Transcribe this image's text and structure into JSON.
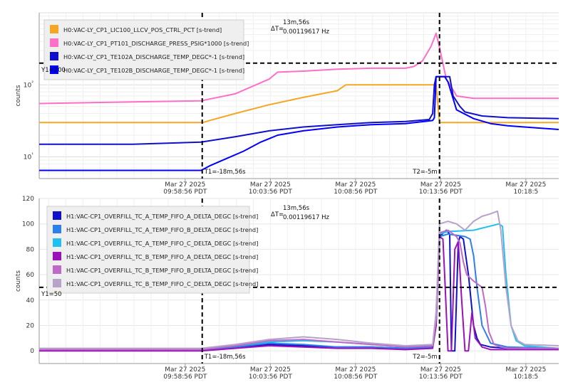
{
  "chart_data": [
    {
      "type": "line",
      "ylabel": "counts",
      "y_scale": "log",
      "y_ticks": [
        {
          "v": 10,
          "label": "10¹"
        },
        {
          "v": 100,
          "label": "10²"
        }
      ],
      "ylim": [
        5,
        1000
      ],
      "xlim": [
        -28.5,
        2
      ],
      "x_ticks": [
        {
          "v": -19.93,
          "date": "Mar 27 2025",
          "time": "09:58:56 PDT"
        },
        {
          "v": -14.93,
          "date": "Mar 27 2025",
          "time": "10:03:56 PDT"
        },
        {
          "v": -9.93,
          "date": "Mar 27 2025",
          "time": "10:08:56 PDT"
        },
        {
          "v": -4.93,
          "date": "Mar 27 2025",
          "time": "10:13:56 PDT"
        },
        {
          "v": 0.07,
          "date": "Mar 27 2025",
          "time": "10:18:5"
        }
      ],
      "grid": true,
      "legend": "top-left",
      "cursors": {
        "t1_label": "T1=-18m,56s",
        "t2_label": "T2=-5m",
        "t1": -18.93,
        "t2": -5.0,
        "y1_label": "Y1=200",
        "y1": 200,
        "delta_label": "ΔT=",
        "delta_time": "13m,56s",
        "delta_freq": "0.00119617 Hz"
      },
      "series": [
        {
          "name": "H0:VAC-LY_CP1_LIC100_LLCV_POS_CTRL_PCT [s-trend]",
          "color": "#f5a623",
          "x": [
            -28.5,
            -18.9,
            -18.5,
            -17,
            -15,
            -13,
            -11,
            -10.5,
            -5.3,
            -5.2,
            -5.0,
            2
          ],
          "y": [
            30,
            30,
            32,
            40,
            53,
            67,
            83,
            100,
            100,
            100,
            30,
            30
          ]
        },
        {
          "name": "H0:VAC-LY_CP1_PT101_DISCHARGE_PRESS_PSIG*1000 [s-trend]",
          "color": "#ff6ec7",
          "x": [
            -28.5,
            -23,
            -19,
            -17,
            -15,
            -14.5,
            -13,
            -11,
            -9,
            -7,
            -6.5,
            -6,
            -5.5,
            -5.2,
            -5.0,
            -4.6,
            -4.2,
            -4,
            -3,
            -1,
            2
          ],
          "y": [
            55,
            58,
            60,
            75,
            120,
            150,
            155,
            165,
            170,
            170,
            180,
            215,
            340,
            520,
            330,
            120,
            85,
            70,
            65,
            65,
            65
          ]
        },
        {
          "name": "H0:VAC-LY_CP1_TE102A_DISCHARGE_TEMP_DEGC*-1 [s-trend]",
          "color": "#1010cc",
          "x": [
            -28.5,
            -23,
            -19,
            -17,
            -15,
            -13,
            -11,
            -9,
            -7,
            -5.6,
            -5.4,
            -5.3,
            -5.2,
            -4.4,
            -4.2,
            -3.8,
            -3.5,
            -2.5,
            -1,
            2
          ],
          "y": [
            15,
            15,
            16,
            19,
            23,
            26,
            28,
            30,
            31,
            33,
            40,
            100,
            130,
            130,
            70,
            50,
            42,
            37,
            35,
            34
          ]
        },
        {
          "name": "H0:VAC-LY_CP1_TE102B_DISCHARGE_TEMP_DEGC*-1 [s-trend]",
          "color": "#0000ff",
          "x": [
            -28.5,
            -19,
            -18.5,
            -17.5,
            -16.5,
            -15.5,
            -14.5,
            -13,
            -11,
            -9,
            -7,
            -5.4,
            -5.3,
            -5.2,
            -4.7,
            -4.5,
            -4,
            -3,
            -2,
            -1,
            2
          ],
          "y": [
            6.5,
            6.5,
            7.5,
            9.5,
            12,
            16,
            20,
            23,
            26,
            28,
            29,
            32,
            35,
            130,
            130,
            110,
            45,
            34,
            29,
            27,
            24
          ]
        }
      ]
    },
    {
      "type": "line",
      "ylabel": "counts",
      "ylim": [
        -10,
        120
      ],
      "y_ticks": [
        0,
        20,
        40,
        60,
        80,
        100,
        120
      ],
      "xlim": [
        -28.5,
        2
      ],
      "x_ticks": [
        {
          "v": -19.93,
          "date": "Mar 27 2025",
          "time": "09:58:56 PDT"
        },
        {
          "v": -14.93,
          "date": "Mar 27 2025",
          "time": "10:03:56 PDT"
        },
        {
          "v": -9.93,
          "date": "Mar 27 2025",
          "time": "10:08:56 PDT"
        },
        {
          "v": -4.93,
          "date": "Mar 27 2025",
          "time": "10:13:56 PDT"
        },
        {
          "v": 0.07,
          "date": "Mar 27 2025",
          "time": "10:18:5"
        }
      ],
      "grid": true,
      "legend": "top-left",
      "cursors": {
        "t1_label": "T1=-18m,56s",
        "t2_label": "T2=-5m",
        "t1": -18.93,
        "t2": -5.0,
        "y1_label": "Y1=50",
        "y1": 50,
        "delta_label": "ΔT=",
        "delta_time": "13m,56s",
        "delta_freq": "0.00119617 Hz"
      },
      "series": [
        {
          "name": "H1:VAC-CP1_OVERFILL_TC_A_TEMP_FIFO_A_DELTA_DEGC [s-trend]",
          "color": "#1010cc",
          "x": [
            -28.5,
            -19,
            -17,
            -15,
            -13,
            -11,
            -9,
            -7,
            -5.4,
            -5.2,
            -5.0,
            -4.6,
            -4.4,
            -4.3,
            -4.1,
            -3.9,
            -3.8,
            -3.6,
            -3.3,
            -3.0,
            -2.8,
            -2.6,
            -2,
            -1,
            2
          ],
          "y": [
            1,
            1,
            3,
            5,
            4,
            3,
            3,
            2,
            3,
            20,
            90,
            95,
            92,
            0,
            0,
            85,
            90,
            88,
            60,
            20,
            10,
            5,
            3,
            2,
            2
          ]
        },
        {
          "name": "H1:VAC-CP1_OVERFILL_TC_A_TEMP_FIFO_B_DELTA_DEGC [s-trend]",
          "color": "#2f7fe8",
          "x": [
            -28.5,
            -19,
            -17,
            -15,
            -13,
            -11,
            -9,
            -7,
            -5.4,
            -5.2,
            -5.0,
            -4.5,
            -3.5,
            -3.2,
            -3.0,
            -2.8,
            -2.5,
            -2,
            -1,
            2
          ],
          "y": [
            1,
            1,
            3,
            6,
            5,
            3,
            3,
            2,
            3,
            25,
            90,
            92,
            90,
            88,
            75,
            50,
            20,
            6,
            3,
            2
          ]
        },
        {
          "name": "H1:VAC-CP1_OVERFILL_TC_A_TEMP_FIFO_C_DELTA_DEGC [s-trend]",
          "color": "#22c0f0",
          "x": [
            -28.5,
            -19,
            -17,
            -15,
            -13,
            -11,
            -9,
            -7,
            -5.4,
            -5.2,
            -5.0,
            -4.5,
            -3,
            -1.5,
            -1.3,
            -1.1,
            -0.8,
            -0.5,
            0,
            1,
            2
          ],
          "y": [
            1,
            1,
            4,
            7,
            8,
            7,
            5,
            3,
            4,
            30,
            92,
            94,
            95,
            100,
            98,
            60,
            20,
            8,
            4,
            3,
            2
          ]
        },
        {
          "name": "H1:VAC-CP1_OVERFILL_TC_B_TEMP_FIFO_A_DELTA_DEGC [s-trend]",
          "color": "#9b12b8",
          "x": [
            -28.5,
            -19,
            -17,
            -15,
            -13,
            -11,
            -9,
            -7,
            -5.4,
            -5.2,
            -5.0,
            -4.8,
            -4.7,
            -4.5,
            -4.3,
            -4.1,
            -3.9,
            -3.7,
            -3.5,
            -3.3,
            -3.1,
            -2.9,
            -2.5,
            -2,
            2
          ],
          "y": [
            0,
            0,
            2,
            4,
            3,
            2,
            2,
            1,
            2,
            20,
            90,
            88,
            60,
            0,
            0,
            80,
            86,
            40,
            0,
            0,
            30,
            10,
            3,
            1,
            1
          ]
        },
        {
          "name": "H1:VAC-CP1_OVERFILL_TC_B_TEMP_FIFO_B_DELTA_DEGC [s-trend]",
          "color": "#c06ac8",
          "x": [
            -28.5,
            -19,
            -17,
            -15,
            -13,
            -11,
            -9,
            -7,
            -5.4,
            -5.2,
            -5.0,
            -4.5,
            -4.0,
            -3.8,
            -3.6,
            -3.4,
            -3.0,
            -2.5,
            -2.3,
            -2.1,
            -1.8,
            -1.4,
            -1,
            0,
            2
          ],
          "y": [
            1,
            1,
            4,
            8,
            9,
            7,
            5,
            3,
            4,
            25,
            93,
            95,
            90,
            85,
            70,
            60,
            55,
            50,
            35,
            15,
            5,
            3,
            2,
            2,
            2
          ]
        },
        {
          "name": "H1:VAC-CP1_OVERFILL_TC_B_TEMP_FIFO_C_DELTA_DEGC [s-trend]",
          "color": "#b8a2c8",
          "x": [
            -28.5,
            -19,
            -17,
            -15,
            -13,
            -11,
            -9,
            -7,
            -5.4,
            -5.2,
            -5.0,
            -4.5,
            -4.0,
            -3.5,
            -3.0,
            -2.5,
            -2,
            -1.6,
            -1.4,
            -1.1,
            -0.8,
            -0.4,
            0,
            2
          ],
          "y": [
            2,
            2,
            5,
            9,
            11,
            9,
            6,
            4,
            5,
            30,
            100,
            102,
            100,
            95,
            102,
            106,
            108,
            110,
            95,
            50,
            20,
            8,
            5,
            4
          ]
        }
      ]
    }
  ]
}
